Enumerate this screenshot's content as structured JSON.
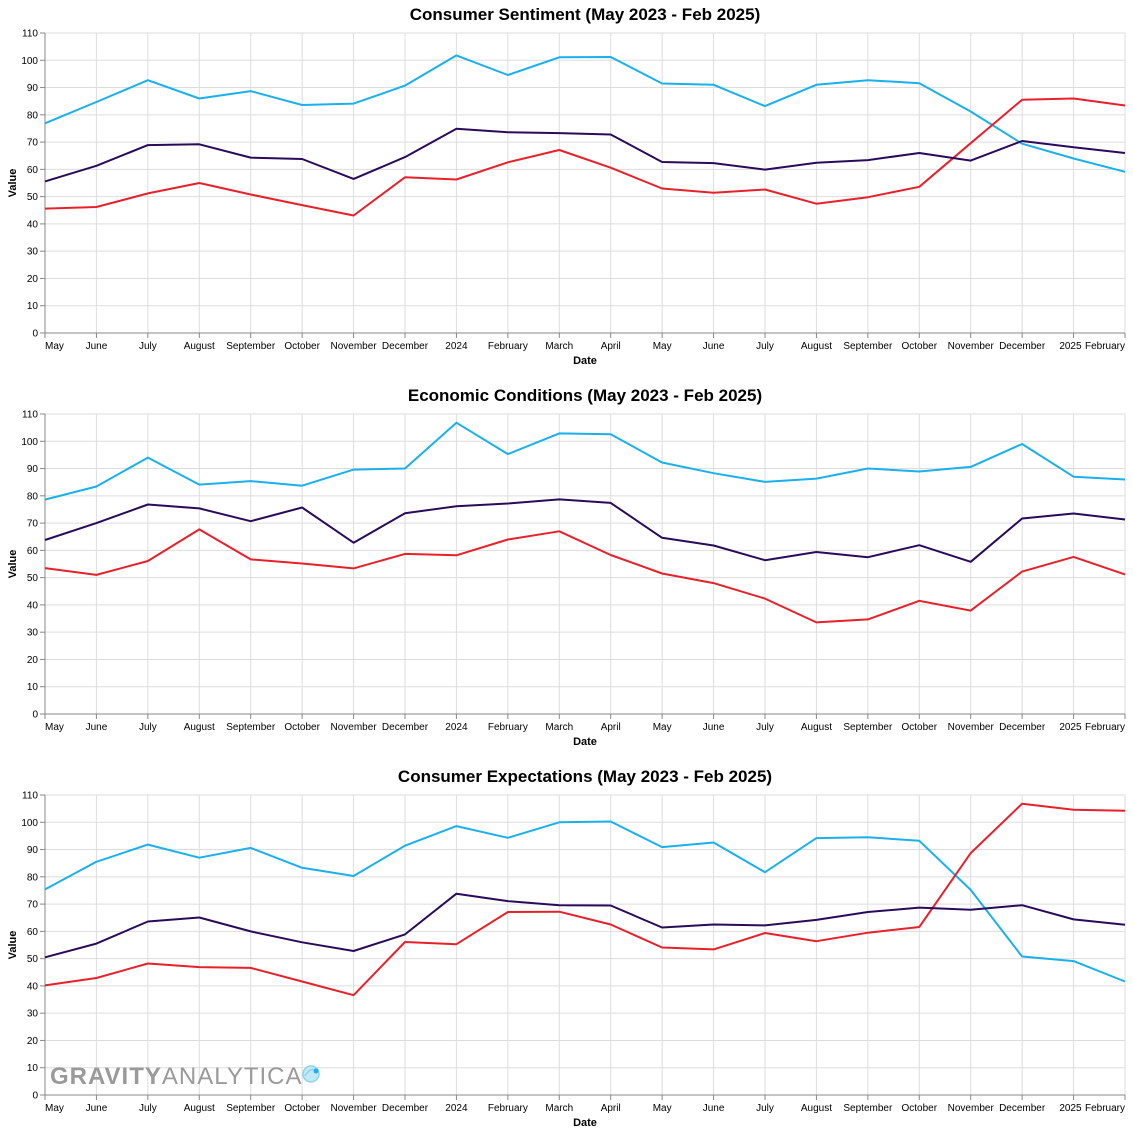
{
  "watermark": {
    "text_bold": "GRAVITY",
    "text_light": "ANALYTICA"
  },
  "x_tick_labels": [
    "May",
    "June",
    "July",
    "August",
    "September",
    "October",
    "November",
    "December",
    "2024",
    "February",
    "March",
    "April",
    "May",
    "June",
    "July",
    "August",
    "September",
    "October",
    "November",
    "December",
    "2025",
    "February"
  ],
  "colors": {
    "series_a": "#1ab0eb",
    "series_b": "#2a0a5a",
    "series_c": "#e8202a",
    "grid": "#dddddd"
  },
  "chart_data": [
    {
      "type": "line",
      "title": "Consumer Sentiment (May 2023 - Feb 2025)",
      "xlabel": "Date",
      "ylabel": "Value",
      "ylim": [
        0,
        110
      ],
      "yticks": [
        0,
        10,
        20,
        30,
        40,
        50,
        60,
        70,
        80,
        90,
        100,
        110
      ],
      "categories": [
        "May 2023",
        "Jun 2023",
        "Jul 2023",
        "Aug 2023",
        "Sep 2023",
        "Oct 2023",
        "Nov 2023",
        "Dec 2023",
        "Jan 2024",
        "Feb 2024",
        "Mar 2024",
        "Apr 2024",
        "May 2024",
        "Jun 2024",
        "Jul 2024",
        "Aug 2024",
        "Sep 2024",
        "Oct 2024",
        "Nov 2024",
        "Dec 2024",
        "Jan 2025",
        "Feb 2025"
      ],
      "series": [
        {
          "name": "series_a",
          "color": "#1ab0eb",
          "values": [
            76.9,
            84.7,
            92.7,
            86.0,
            88.7,
            83.6,
            84.1,
            90.7,
            101.8,
            94.6,
            101.1,
            101.2,
            91.5,
            91.0,
            83.2,
            91.0,
            92.7,
            91.6,
            81.2,
            69.4,
            64.0,
            59.1
          ]
        },
        {
          "name": "series_b",
          "color": "#2a0a5a",
          "values": [
            55.6,
            61.3,
            68.9,
            69.2,
            64.3,
            63.8,
            56.5,
            64.5,
            74.9,
            73.6,
            73.3,
            72.8,
            62.7,
            62.3,
            59.9,
            62.4,
            63.4,
            66.0,
            63.2,
            70.4,
            68.1,
            66.0
          ]
        },
        {
          "name": "series_c",
          "color": "#e8202a",
          "values": [
            45.6,
            46.2,
            51.2,
            55.0,
            50.8,
            46.9,
            43.1,
            57.1,
            56.3,
            62.6,
            67.1,
            60.6,
            53.0,
            51.4,
            52.6,
            47.4,
            49.8,
            53.6,
            69.6,
            85.5,
            86.0,
            83.4
          ]
        }
      ]
    },
    {
      "type": "line",
      "title": "Economic Conditions (May 2023 - Feb 2025)",
      "xlabel": "Date",
      "ylabel": "Value",
      "ylim": [
        0,
        110
      ],
      "yticks": [
        0,
        10,
        20,
        30,
        40,
        50,
        60,
        70,
        80,
        90,
        100,
        110
      ],
      "categories": [
        "May 2023",
        "Jun 2023",
        "Jul 2023",
        "Aug 2023",
        "Sep 2023",
        "Oct 2023",
        "Nov 2023",
        "Dec 2023",
        "Jan 2024",
        "Feb 2024",
        "Mar 2024",
        "Apr 2024",
        "May 2024",
        "Jun 2024",
        "Jul 2024",
        "Aug 2024",
        "Sep 2024",
        "Oct 2024",
        "Nov 2024",
        "Dec 2024",
        "Jan 2025",
        "Feb 2025"
      ],
      "series": [
        {
          "name": "series_a",
          "color": "#1ab0eb",
          "values": [
            78.6,
            83.4,
            94.0,
            84.1,
            85.4,
            83.7,
            89.6,
            90.0,
            106.8,
            95.3,
            102.9,
            102.6,
            92.2,
            88.3,
            85.1,
            86.3,
            90.0,
            88.9,
            90.6,
            99.0,
            87.0,
            86.0
          ]
        },
        {
          "name": "series_b",
          "color": "#2a0a5a",
          "values": [
            63.8,
            70.0,
            76.8,
            75.4,
            70.7,
            75.7,
            62.8,
            73.6,
            76.2,
            77.2,
            78.7,
            77.4,
            64.6,
            61.8,
            56.4,
            59.4,
            57.5,
            61.9,
            55.8,
            71.7,
            73.5,
            71.3
          ]
        },
        {
          "name": "series_c",
          "color": "#e8202a",
          "values": [
            53.5,
            51.0,
            56.1,
            67.7,
            56.7,
            55.2,
            53.4,
            58.7,
            58.2,
            64.0,
            67.0,
            58.3,
            51.5,
            48.0,
            42.3,
            33.6,
            34.7,
            41.5,
            37.9,
            52.2,
            57.6,
            51.2
          ]
        }
      ]
    },
    {
      "type": "line",
      "title": "Consumer Expectations (May 2023 - Feb 2025)",
      "xlabel": "Date",
      "ylabel": "Value",
      "ylim": [
        0,
        110
      ],
      "yticks": [
        0,
        10,
        20,
        30,
        40,
        50,
        60,
        70,
        80,
        90,
        100,
        110
      ],
      "categories": [
        "May 2023",
        "Jun 2023",
        "Jul 2023",
        "Aug 2023",
        "Sep 2023",
        "Oct 2023",
        "Nov 2023",
        "Dec 2023",
        "Jan 2024",
        "Feb 2024",
        "Mar 2024",
        "Apr 2024",
        "May 2024",
        "Jun 2024",
        "Jul 2024",
        "Aug 2024",
        "Sep 2024",
        "Oct 2024",
        "Nov 2024",
        "Dec 2024",
        "Jan 2025",
        "Feb 2025"
      ],
      "series": [
        {
          "name": "series_a",
          "color": "#1ab0eb",
          "values": [
            75.4,
            85.5,
            91.8,
            87.0,
            90.6,
            83.3,
            80.3,
            91.4,
            98.6,
            94.3,
            100.0,
            100.3,
            90.9,
            92.6,
            81.7,
            94.2,
            94.5,
            93.2,
            75.2,
            50.8,
            49.1,
            41.6
          ]
        },
        {
          "name": "series_b",
          "color": "#2a0a5a",
          "values": [
            50.5,
            55.5,
            63.6,
            65.1,
            60.0,
            56.0,
            52.8,
            58.9,
            73.8,
            71.1,
            69.6,
            69.5,
            61.4,
            62.5,
            62.2,
            64.2,
            67.1,
            68.7,
            67.9,
            69.6,
            64.4,
            62.4
          ]
        },
        {
          "name": "series_c",
          "color": "#e8202a",
          "values": [
            40.2,
            42.9,
            48.2,
            46.9,
            46.6,
            41.6,
            36.6,
            56.1,
            55.3,
            67.1,
            67.2,
            62.5,
            54.1,
            53.4,
            59.4,
            56.4,
            59.5,
            61.6,
            88.7,
            106.8,
            104.6,
            104.2
          ]
        }
      ]
    }
  ]
}
